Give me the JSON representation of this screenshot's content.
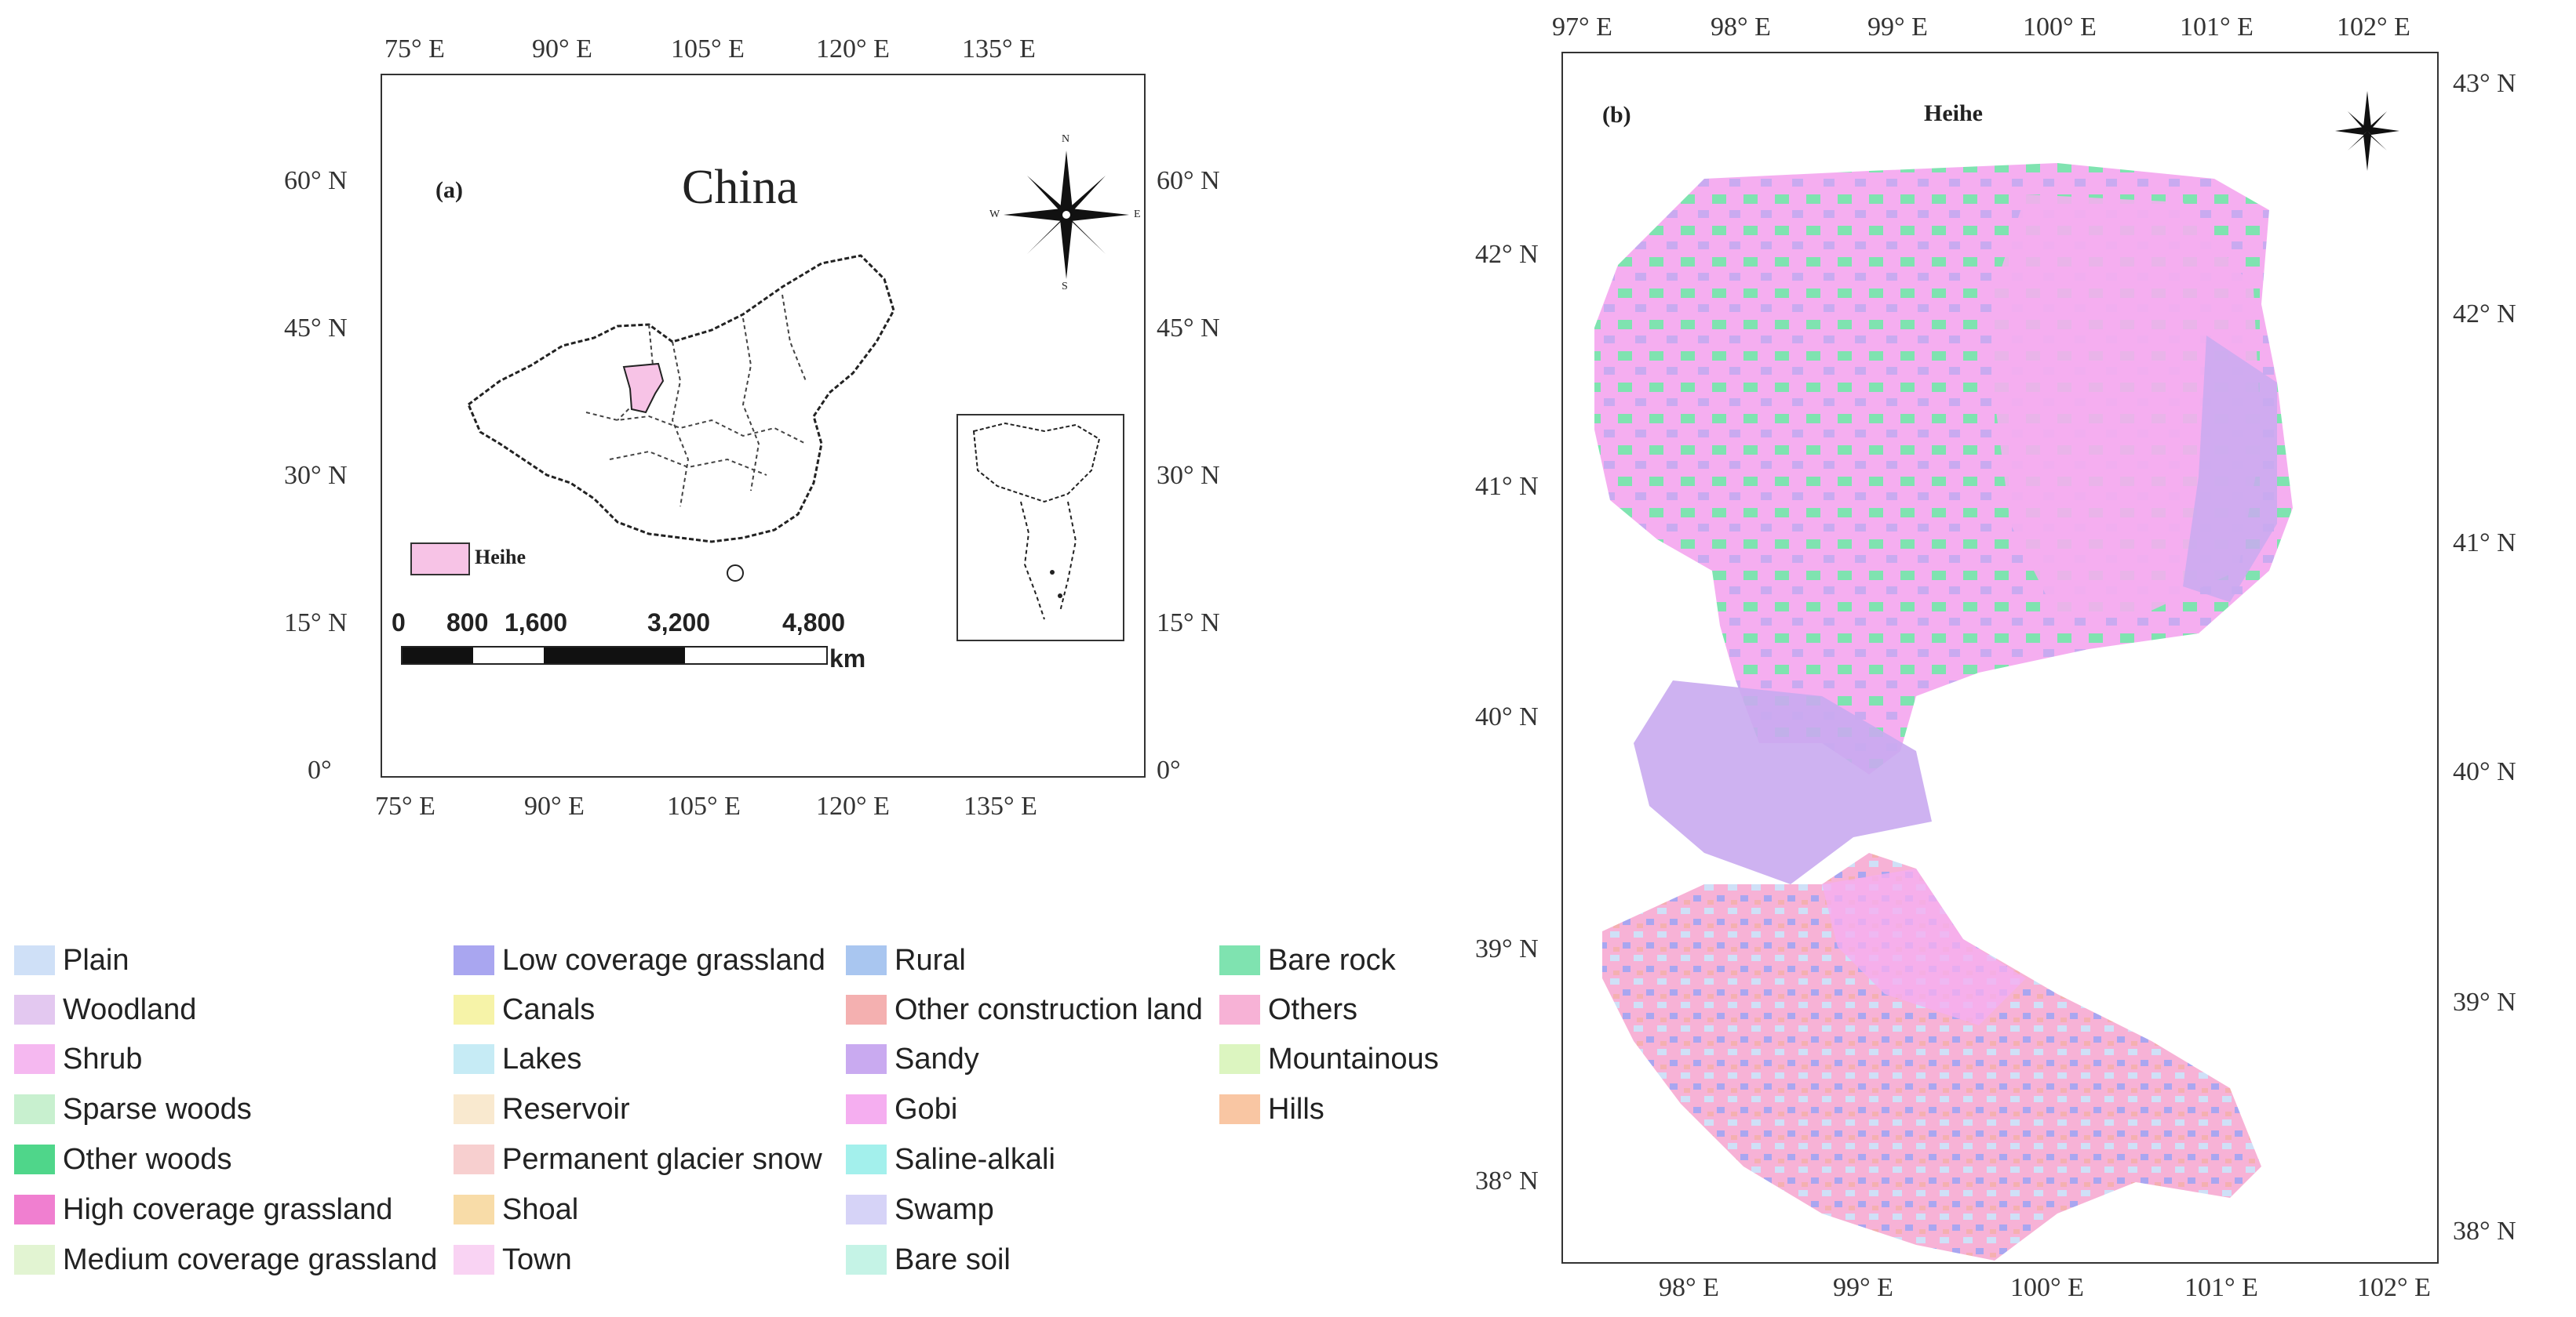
{
  "map_a": {
    "panel_label": "(a)",
    "title": "China",
    "inset_legend_label": "Heihe",
    "scale_numbers": [
      "0",
      "800",
      "1,600",
      "3,200",
      "4,800"
    ],
    "scale_unit": "km",
    "x_ticks": [
      "75° E",
      "90° E",
      "105° E",
      "120° E",
      "135° E"
    ],
    "y_ticks": [
      "60° N",
      "45° N",
      "30° N",
      "15° N",
      "0°"
    ],
    "y_ticks_right": [
      "60° N",
      "45° N",
      "30° N",
      "15° N",
      "0°"
    ],
    "compass": {
      "n": "N",
      "s": "S",
      "e": "E",
      "w": "W"
    },
    "highlight_color": "#f7c3e6"
  },
  "map_b": {
    "panel_label": "(b)",
    "title": "Heihe",
    "x_ticks": [
      "97° E",
      "98° E",
      "99° E",
      "100° E",
      "101° E",
      "102° E"
    ],
    "x_ticks_bottom": [
      "98° E",
      "99° E",
      "100° E",
      "101° E",
      "102° E"
    ],
    "y_ticks_left": [
      "42° N",
      "41° N",
      "40° N",
      "39° N",
      "38° N"
    ],
    "y_ticks_right": [
      "43° N",
      "42° N",
      "41° N",
      "40° N",
      "39° N",
      "38° N"
    ]
  },
  "legend": [
    {
      "label": "Plain",
      "color": "#cfe0f7"
    },
    {
      "label": "Woodland",
      "color": "#e3c8f0"
    },
    {
      "label": "Shrub",
      "color": "#f5b8f0"
    },
    {
      "label": "Sparse woods",
      "color": "#c8f0cf"
    },
    {
      "label": "Other woods",
      "color": "#4fd68a"
    },
    {
      "label": "High coverage grassland",
      "color": "#f07fd0"
    },
    {
      "label": "Medium coverage grassland",
      "color": "#e2f4d2"
    },
    {
      "label": "Low coverage grassland",
      "color": "#a9a6f0"
    },
    {
      "label": "Canals",
      "color": "#f6f3a8"
    },
    {
      "label": "Lakes",
      "color": "#c6ebf5"
    },
    {
      "label": "Reservoir",
      "color": "#f9e9cf"
    },
    {
      "label": "Permanent glacier snow",
      "color": "#f7cfcf"
    },
    {
      "label": "Shoal",
      "color": "#f8dca8"
    },
    {
      "label": "Town",
      "color": "#f9d3f3"
    },
    {
      "label": "Rural",
      "color": "#a9c6f0"
    },
    {
      "label": "Other construction land",
      "color": "#f4b0b0"
    },
    {
      "label": "Sandy",
      "color": "#c9aaf0"
    },
    {
      "label": "Gobi",
      "color": "#f5aef0"
    },
    {
      "label": "Saline-alkali",
      "color": "#a3f0ec"
    },
    {
      "label": "Swamp",
      "color": "#d6d3f7"
    },
    {
      "label": "Bare soil",
      "color": "#c5f3e6"
    },
    {
      "label": "Bare rock",
      "color": "#7fe3b0"
    },
    {
      "label": "Others",
      "color": "#f7b2d6"
    },
    {
      "label": "Mountainous",
      "color": "#dcf5c0"
    },
    {
      "label": "Hills",
      "color": "#f9c6a3"
    }
  ]
}
